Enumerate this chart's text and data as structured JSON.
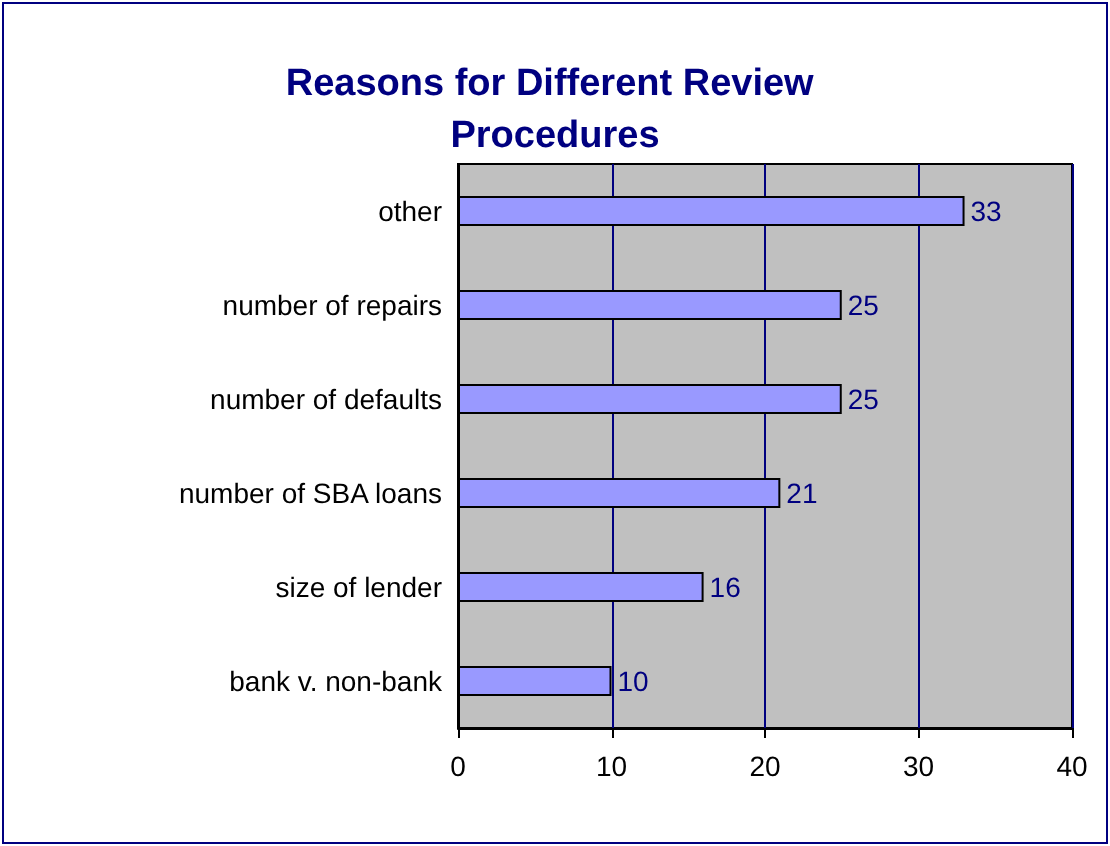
{
  "chart_data": {
    "type": "bar",
    "orientation": "horizontal",
    "title": "Reasons for Different Review Procedures",
    "categories": [
      "other",
      "number of repairs",
      "number of defaults",
      "number of SBA loans",
      "size of lender",
      "bank v. non-bank"
    ],
    "values": [
      33,
      25,
      25,
      21,
      16,
      10
    ],
    "color": "#9999ff",
    "xlim": [
      0,
      40
    ],
    "xticks": [
      0,
      10,
      20,
      30,
      40
    ],
    "grid": "x",
    "data_labels": true
  }
}
